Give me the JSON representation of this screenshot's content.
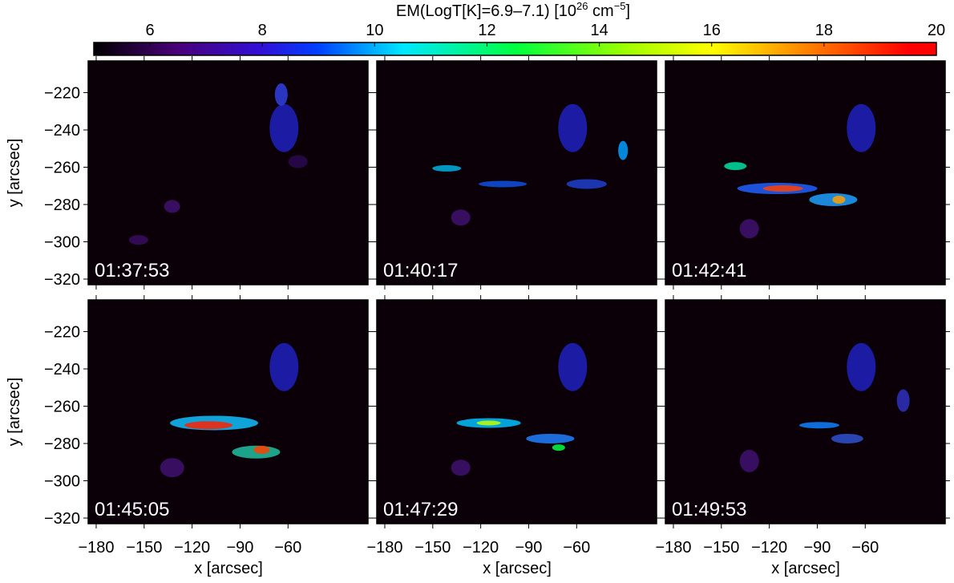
{
  "chart_data": {
    "type": "image-grid",
    "colorbar": {
      "label": [
        "EM(LogT[K]=6.9–7.1) [10",
        "26",
        " cm",
        "−5",
        "]"
      ],
      "clim": [
        5,
        20
      ],
      "ticks": [
        6,
        8,
        10,
        12,
        14,
        16,
        18,
        20
      ],
      "colormap": [
        {
          "value": 5,
          "color": "#000000"
        },
        {
          "value": 6.5,
          "color": "#4a007a"
        },
        {
          "value": 8,
          "color": "#3010d8"
        },
        {
          "value": 9,
          "color": "#0040ff"
        },
        {
          "value": 10.5,
          "color": "#00e8ff"
        },
        {
          "value": 12.5,
          "color": "#00ff40"
        },
        {
          "value": 14.5,
          "color": "#a0ff00"
        },
        {
          "value": 16,
          "color": "#ffff00"
        },
        {
          "value": 17.5,
          "color": "#ff9000"
        },
        {
          "value": 19.5,
          "color": "#ff0000"
        },
        {
          "value": 20,
          "color": "#ff0000"
        }
      ]
    },
    "xlabel": "x [arcsec]",
    "ylabel": "y [arcsec]",
    "xlim": [
      -185,
      -10
    ],
    "ylim": [
      -323,
      -203
    ],
    "xticks": [
      {
        "value": -180,
        "label": "−180"
      },
      {
        "value": -150,
        "label": "−150"
      },
      {
        "value": -120,
        "label": "−120"
      },
      {
        "value": -90,
        "label": "−90"
      },
      {
        "value": -60,
        "label": "−60"
      }
    ],
    "yticks": [
      {
        "value": -220,
        "label": "−220"
      },
      {
        "value": -240,
        "label": "−240"
      },
      {
        "value": -260,
        "label": "−260"
      },
      {
        "value": -280,
        "label": "−280"
      },
      {
        "value": -300,
        "label": "−300"
      },
      {
        "value": -320,
        "label": "−320"
      }
    ],
    "panels": [
      {
        "title": "01:37:53"
      },
      {
        "title": "01:40:17"
      },
      {
        "title": "01:42:41"
      },
      {
        "title": "01:45:05"
      },
      {
        "title": "01:47:29"
      },
      {
        "title": "01:49:53"
      }
    ]
  }
}
